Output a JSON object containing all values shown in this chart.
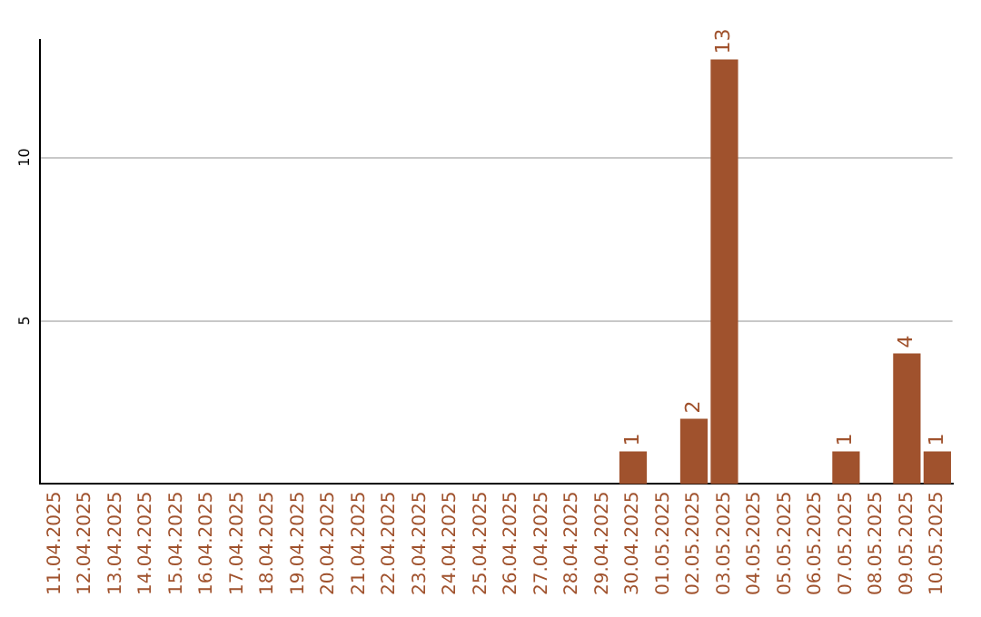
{
  "chart_data": {
    "type": "bar",
    "categories": [
      "11.04.2025",
      "12.04.2025",
      "13.04.2025",
      "14.04.2025",
      "15.04.2025",
      "16.04.2025",
      "17.04.2025",
      "18.04.2025",
      "19.04.2025",
      "20.04.2025",
      "21.04.2025",
      "22.04.2025",
      "23.04.2025",
      "24.04.2025",
      "25.04.2025",
      "26.04.2025",
      "27.04.2025",
      "28.04.2025",
      "29.04.2025",
      "30.04.2025",
      "01.05.2025",
      "02.05.2025",
      "03.05.2025",
      "04.05.2025",
      "05.05.2025",
      "06.05.2025",
      "07.05.2025",
      "08.05.2025",
      "09.05.2025",
      "10.05.2025"
    ],
    "values": [
      0,
      0,
      0,
      0,
      0,
      0,
      0,
      0,
      0,
      0,
      0,
      0,
      0,
      0,
      0,
      0,
      0,
      0,
      0,
      1,
      0,
      2,
      13,
      0,
      0,
      0,
      1,
      0,
      4,
      1
    ],
    "value_labels": [
      null,
      null,
      null,
      null,
      null,
      null,
      null,
      null,
      null,
      null,
      null,
      null,
      null,
      null,
      null,
      null,
      null,
      null,
      null,
      "1",
      null,
      "2",
      "13",
      null,
      null,
      null,
      "1",
      null,
      "4",
      "1"
    ],
    "color": "#a0522d",
    "ylim": [
      0,
      13.6
    ],
    "yticks": [
      5,
      10
    ],
    "grid": "y"
  }
}
